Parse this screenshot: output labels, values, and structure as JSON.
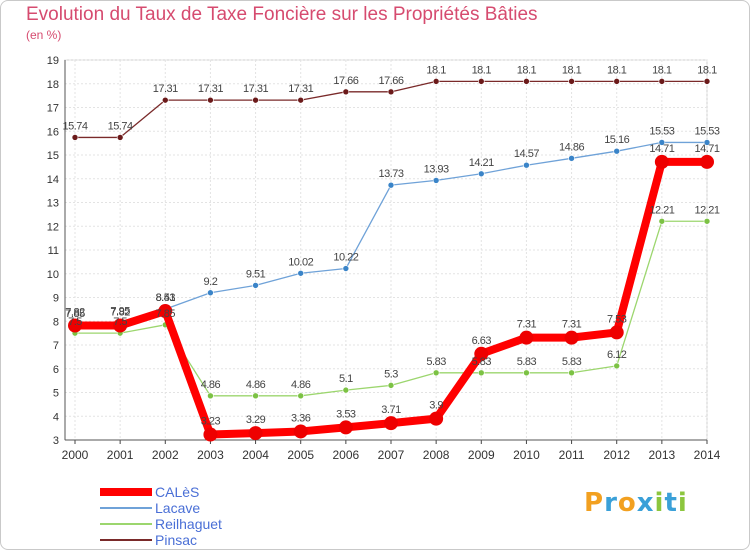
{
  "title": "Evolution du Taux de Taxe Foncière sur les Propriétés Bâties",
  "subtitle": "(en %)",
  "logo": {
    "letters": [
      "P",
      "r",
      "o",
      "x",
      "i",
      "t",
      "i"
    ],
    "colors": [
      "#f2a020",
      "#3aa0d8",
      "#f2a020",
      "#3aa0d8",
      "#8cc63e",
      "#3aa0d8",
      "#8cc63e"
    ]
  },
  "chart_data": {
    "type": "line",
    "title": "Evolution du Taux de Taxe Foncière sur les Propriétés Bâties",
    "ylabel": "(en %)",
    "xlabel": "",
    "ylim": [
      3,
      19
    ],
    "yticks": [
      3,
      4,
      5,
      6,
      7,
      8,
      9,
      10,
      11,
      12,
      13,
      14,
      15,
      16,
      17,
      18,
      19
    ],
    "x": [
      "2000",
      "2001",
      "2002",
      "2003",
      "2004",
      "2005",
      "2006",
      "2007",
      "2008",
      "2009",
      "2010",
      "2011",
      "2012",
      "2013",
      "2014"
    ],
    "grid": true,
    "series": [
      {
        "name": "Pinsac",
        "color": "#7a2a2a",
        "marker": "#6b1a1a",
        "width": 1.3,
        "r": 3,
        "values": [
          15.74,
          15.74,
          17.31,
          17.31,
          17.31,
          17.31,
          17.66,
          17.66,
          18.1,
          18.1,
          18.1,
          18.1,
          18.1,
          18.1,
          18.1
        ],
        "labels": [
          "15.74",
          "15.74",
          "17.31",
          "17.31",
          "17.31",
          "17.31",
          "17.66",
          "17.66",
          "18.1",
          "18.1",
          "18.1",
          "18.1",
          "18.1",
          "18.1",
          "18.1"
        ]
      },
      {
        "name": "Lacave",
        "color": "#6fa2d8",
        "marker": "#3a84c8",
        "width": 1.3,
        "r": 3,
        "values": [
          7.85,
          7.95,
          8.51,
          9.2,
          9.51,
          10.02,
          10.22,
          13.73,
          13.93,
          14.21,
          14.57,
          14.86,
          15.16,
          15.53,
          15.53
        ],
        "labels": [
          "7.85",
          "7.95",
          "8.51",
          "9.2",
          "9.51",
          "10.02",
          "10.22",
          "13.73",
          "13.93",
          "14.21",
          "14.57",
          "14.86",
          "15.16",
          "15.53",
          "15.53"
        ]
      },
      {
        "name": "Reilhaguet",
        "color": "#9cd66e",
        "marker": "#7cc244",
        "width": 1.3,
        "r": 3,
        "values": [
          7.5,
          7.5,
          7.85,
          4.86,
          4.86,
          4.86,
          5.1,
          5.3,
          5.83,
          5.83,
          5.83,
          5.83,
          6.12,
          12.21,
          12.21
        ],
        "labels": [
          "7.5",
          "7.5",
          "7.85",
          "4.86",
          "4.86",
          "4.86",
          "5.1",
          "5.3",
          "5.83",
          "5.83",
          "5.83",
          "5.83",
          "6.12",
          "12.21",
          "12.21"
        ]
      },
      {
        "name": "CALèS",
        "color": "#ff0000",
        "marker": "#ee0000",
        "width": 8,
        "r": 7,
        "values": [
          7.82,
          7.82,
          8.43,
          3.23,
          3.29,
          3.36,
          3.53,
          3.71,
          3.9,
          6.63,
          7.31,
          7.31,
          7.53,
          14.71,
          14.71
        ],
        "labels": [
          "7.82",
          "7.82",
          "8.43",
          "3.23",
          "3.29",
          "3.36",
          "3.53",
          "3.71",
          "3.9",
          "6.63",
          "7.31",
          "7.31",
          "7.53",
          "14.71",
          "14.71"
        ]
      }
    ],
    "legend": [
      {
        "name": "CALèS",
        "color": "#ff0000",
        "thick": true
      },
      {
        "name": "Lacave",
        "color": "#6fa2d8",
        "thick": false
      },
      {
        "name": "Reilhaguet",
        "color": "#9cd66e",
        "thick": false
      },
      {
        "name": "Pinsac",
        "color": "#7a2a2a",
        "thick": false
      }
    ]
  }
}
